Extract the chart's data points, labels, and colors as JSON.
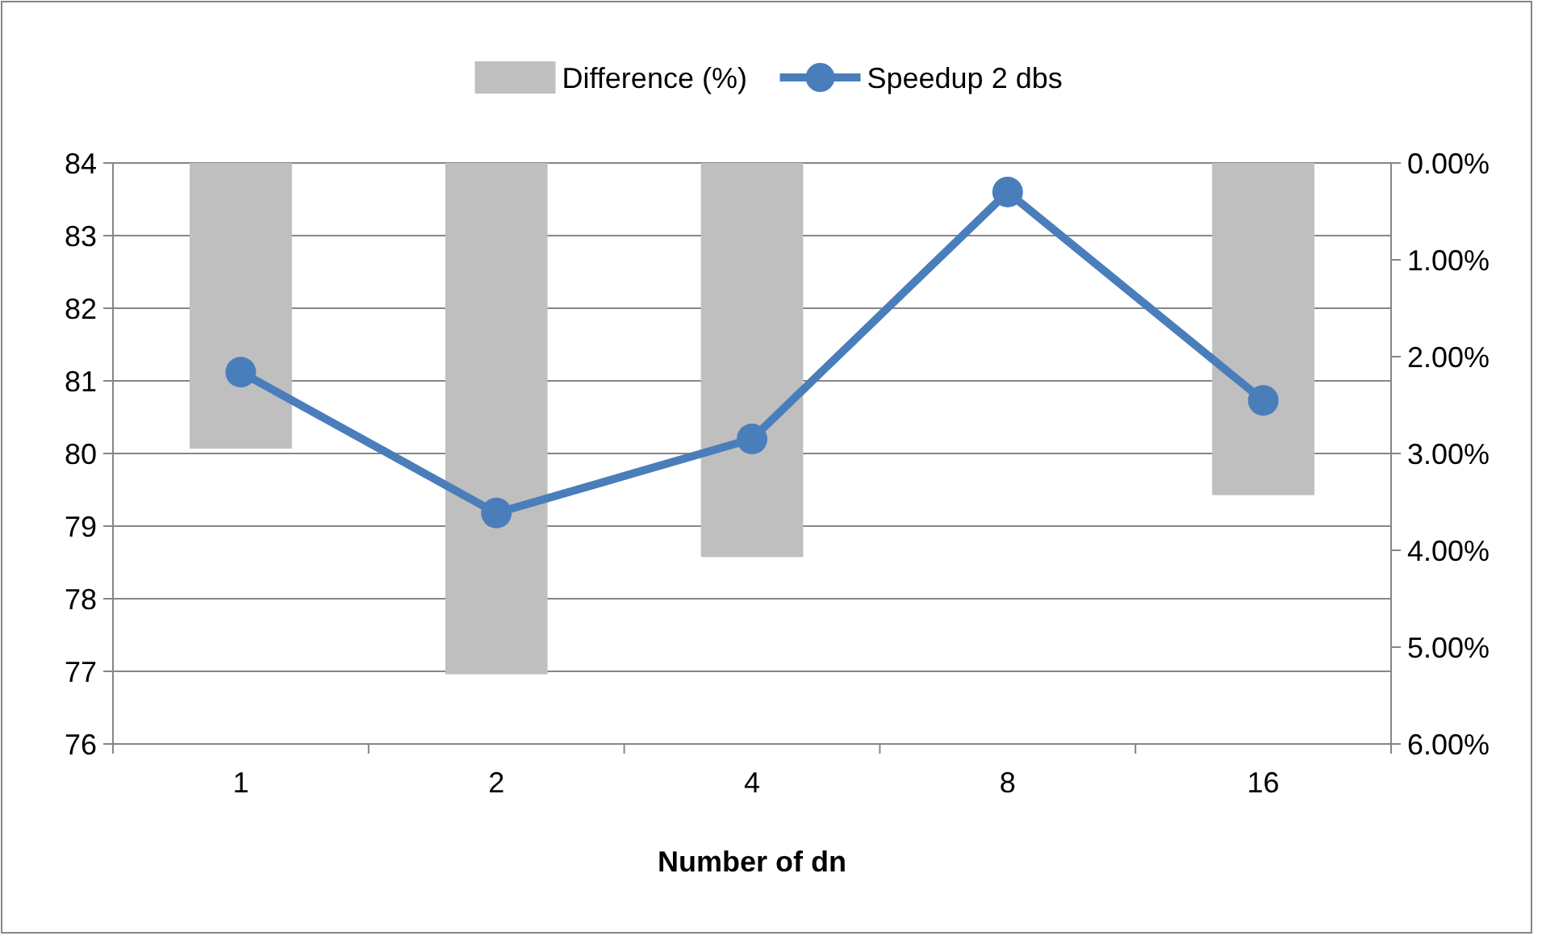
{
  "chart_data": {
    "type": "bar",
    "xlabel": "Number of dn",
    "categories": [
      "1",
      "2",
      "4",
      "8",
      "16"
    ],
    "series": [
      {
        "name": "Difference (%)",
        "axis": "y2",
        "color": "#bfbfbf",
        "values": [
          2.95,
          5.28,
          4.07,
          0,
          3.43
        ]
      },
      {
        "name": "Speedup 2 dbs",
        "type": "line",
        "axis": "y",
        "color": "#4a7ebb",
        "marker": "circle",
        "values": [
          81.12,
          79.18,
          80.2,
          83.6,
          80.73
        ]
      }
    ],
    "ylim": [
      76,
      84
    ],
    "yticks": [
      76,
      77,
      78,
      79,
      80,
      81,
      82,
      83,
      84
    ],
    "y2lim": [
      6,
      0
    ],
    "y2ticks": [
      {
        "value": 0,
        "label": "0.00%"
      },
      {
        "value": 1,
        "label": "1.00%"
      },
      {
        "value": 2,
        "label": "2.00%"
      },
      {
        "value": 3,
        "label": "3.00%"
      },
      {
        "value": 4,
        "label": "4.00%"
      },
      {
        "value": 5,
        "label": "5.00%"
      },
      {
        "value": 6,
        "label": "6.00%"
      }
    ],
    "grid": "y",
    "legend": "top"
  }
}
